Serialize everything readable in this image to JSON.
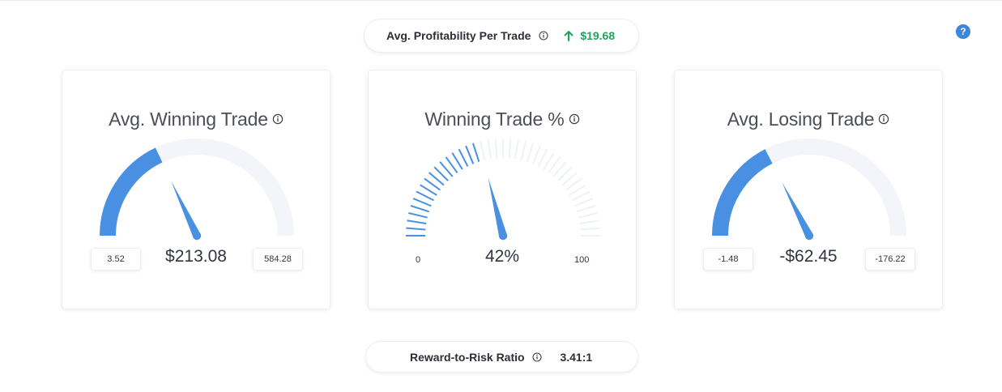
{
  "header": {
    "profit_label": "Avg. Profitability Per Trade",
    "profit_value": "$19.68",
    "profit_trend": "up",
    "profit_color": "#1fa35b",
    "help_label": "?"
  },
  "footer": {
    "ratio_label": "Reward-to-Risk Ratio",
    "ratio_value": "3.41:1"
  },
  "colors": {
    "accent": "#4a90e2",
    "track": "#f3f5fa",
    "tick_inactive": "#eef1f6"
  },
  "gauges": [
    {
      "title": "Avg. Winning Trade",
      "value": "$213.08",
      "min": "3.52",
      "max": "584.28",
      "style": "arc",
      "fraction": 0.36
    },
    {
      "title": "Winning Trade %",
      "value": "42%",
      "min": "0",
      "max": "100",
      "style": "ticks",
      "fraction": 0.42
    },
    {
      "title": "Avg. Losing Trade",
      "value": "-$62.45",
      "min": "-1.48",
      "max": "-176.22",
      "style": "arc",
      "fraction": 0.35
    }
  ]
}
